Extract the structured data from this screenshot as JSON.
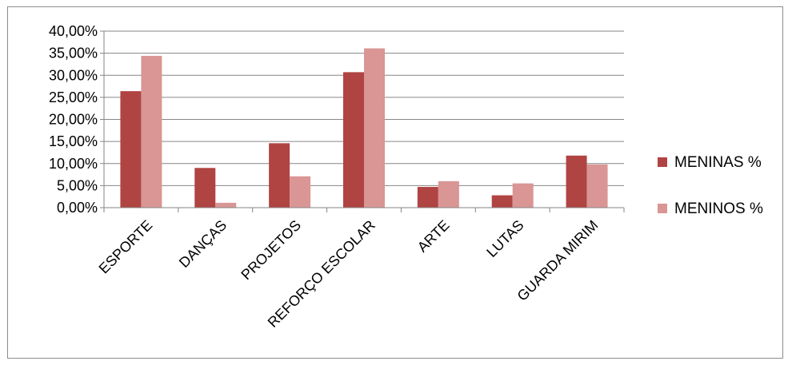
{
  "chart_data": {
    "type": "bar",
    "title": "",
    "xlabel": "",
    "ylabel": "",
    "ylim": [
      0,
      40
    ],
    "y_ticks": [
      "0,00%",
      "5,00%",
      "10,00%",
      "15,00%",
      "20,00%",
      "25,00%",
      "30,00%",
      "35,00%",
      "40,00%"
    ],
    "grid": true,
    "legend_position": "right",
    "categories": [
      "ESPORTE",
      "DANÇAS",
      "PROJETOS",
      "REFORÇO ESCOLAR",
      "ARTE",
      "LUTAS",
      "GUARDA MIRIM"
    ],
    "series": [
      {
        "name": "MENINAS %",
        "color": "#b04442",
        "values": [
          26.4,
          9.0,
          14.6,
          30.7,
          4.7,
          2.8,
          11.8
        ]
      },
      {
        "name": "MENINOS %",
        "color": "#d99694",
        "values": [
          34.4,
          1.1,
          7.1,
          36.1,
          6.0,
          5.5,
          9.8
        ]
      }
    ]
  }
}
